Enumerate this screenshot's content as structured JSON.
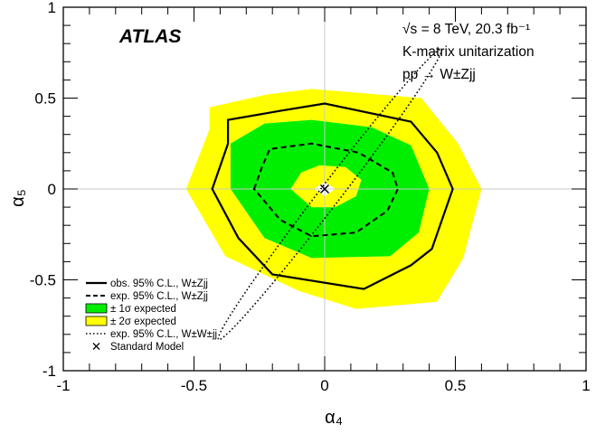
{
  "chart_data": {
    "type": "contour",
    "experiment_label": "ATLAS",
    "info_lines": [
      "√s = 8 TeV, 20.3 fb⁻¹",
      "K-matrix unitarization",
      "pp → W±Zjj"
    ],
    "xlabel": "α₄",
    "ylabel": "α₅",
    "xlim": [
      -1,
      1
    ],
    "ylim": [
      -1,
      1
    ],
    "xticks": [
      "-1",
      "-0.5",
      "0",
      "0.5",
      "1"
    ],
    "yticks": [
      "-1",
      "-0.5",
      "0",
      "0.5",
      "1"
    ],
    "grid_lines": "origin",
    "colors": {
      "band_2sigma": "#ffff00",
      "band_1sigma": "#00ee00",
      "line": "#000000"
    },
    "band_2sigma": [
      [
        -0.53,
        0.0
      ],
      [
        -0.44,
        0.33
      ],
      [
        -0.44,
        0.45
      ],
      [
        -0.22,
        0.52
      ],
      [
        -0.05,
        0.55
      ],
      [
        0.37,
        0.5
      ],
      [
        0.51,
        0.25
      ],
      [
        0.6,
        0.0
      ],
      [
        0.53,
        -0.38
      ],
      [
        0.43,
        -0.62
      ],
      [
        0.12,
        -0.66
      ],
      [
        -0.1,
        -0.56
      ],
      [
        -0.38,
        -0.37
      ],
      [
        -0.53,
        0.0
      ]
    ],
    "band_1sigma": [
      [
        -0.36,
        0.0
      ],
      [
        -0.36,
        0.25
      ],
      [
        -0.23,
        0.36
      ],
      [
        -0.05,
        0.38
      ],
      [
        0.18,
        0.34
      ],
      [
        0.33,
        0.24
      ],
      [
        0.4,
        0.0
      ],
      [
        0.36,
        -0.24
      ],
      [
        0.25,
        -0.37
      ],
      [
        -0.05,
        -0.38
      ],
      [
        -0.23,
        -0.27
      ],
      [
        -0.36,
        0.0
      ]
    ],
    "band_1sigma_hole": [
      [
        -0.13,
        0.0
      ],
      [
        -0.09,
        0.09
      ],
      [
        -0.02,
        0.13
      ],
      [
        0.08,
        0.12
      ],
      [
        0.14,
        0.05
      ],
      [
        0.12,
        -0.04
      ],
      [
        0.04,
        -0.1
      ],
      [
        -0.05,
        -0.1
      ],
      [
        -0.13,
        0.0
      ]
    ],
    "band_2sigma_hole": [
      [
        -0.04,
        0.0
      ],
      [
        0.0,
        0.04
      ],
      [
        0.04,
        0.0
      ],
      [
        0.0,
        -0.04
      ],
      [
        -0.04,
        0.0
      ]
    ],
    "obs_95": [
      [
        -0.43,
        0.0
      ],
      [
        -0.37,
        0.25
      ],
      [
        -0.37,
        0.38
      ],
      [
        -0.17,
        0.43
      ],
      [
        0.0,
        0.47
      ],
      [
        0.33,
        0.37
      ],
      [
        0.43,
        0.2
      ],
      [
        0.49,
        0.0
      ],
      [
        0.41,
        -0.33
      ],
      [
        0.33,
        -0.42
      ],
      [
        0.15,
        -0.55
      ],
      [
        -0.2,
        -0.47
      ],
      [
        -0.33,
        -0.27
      ],
      [
        -0.43,
        0.0
      ]
    ],
    "exp_95": [
      [
        -0.27,
        0.0
      ],
      [
        -0.24,
        0.12
      ],
      [
        -0.21,
        0.22
      ],
      [
        -0.05,
        0.25
      ],
      [
        0.13,
        0.2
      ],
      [
        0.26,
        0.09
      ],
      [
        0.28,
        0.0
      ],
      [
        0.24,
        -0.12
      ],
      [
        0.12,
        -0.24
      ],
      [
        -0.05,
        -0.26
      ],
      [
        -0.17,
        -0.17
      ],
      [
        -0.27,
        0.0
      ]
    ],
    "exp_95_wwjj": {
      "center": [
        0.02,
        -0.03
      ],
      "semi_major": 0.7,
      "semi_minor": 0.058,
      "angle_deg": -52.5
    },
    "standard_model": [
      0,
      0
    ],
    "legend": [
      {
        "type": "solid-line",
        "label": "obs. 95% C.L., W±Zjj"
      },
      {
        "type": "dashed-line",
        "label": "exp. 95% C.L., W±Zjj"
      },
      {
        "type": "green-box",
        "label": "± 1σ expected"
      },
      {
        "type": "yellow-box",
        "label": "± 2σ expected"
      },
      {
        "type": "dotted-line",
        "label": "exp. 95% C.L., W±W±jj"
      },
      {
        "type": "cross",
        "label": "Standard Model"
      }
    ]
  }
}
